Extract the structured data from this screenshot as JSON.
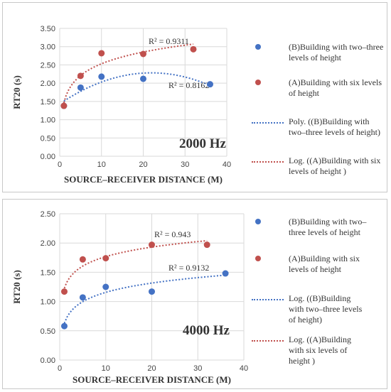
{
  "chart_data": [
    {
      "type": "scatter",
      "frequency_label": "2000 Hz",
      "xlabel": "SOURCE–RECEIVER DISTANCE (M)",
      "ylabel": "RT20 (s)",
      "xlim": [
        0,
        40
      ],
      "ylim": [
        0,
        3.5
      ],
      "x_ticks": [
        "0",
        "10",
        "20",
        "30",
        "40"
      ],
      "y_ticks": [
        "0.00",
        "0.50",
        "1.00",
        "1.50",
        "2.00",
        "2.50",
        "3.00",
        "3.50"
      ],
      "grid": true,
      "legend_position": "right",
      "series": [
        {
          "name": "(B)Building with two–three levels of height",
          "color": "#4472c4",
          "x": [
            1,
            5,
            10,
            20,
            36
          ],
          "y": [
            1.38,
            1.88,
            2.18,
            2.12,
            1.97
          ]
        },
        {
          "name": "(A)Building with six levels of height",
          "color": "#c0504d",
          "x": [
            1,
            5,
            10,
            20,
            32
          ],
          "y": [
            1.38,
            2.2,
            2.82,
            2.8,
            2.93
          ]
        }
      ],
      "trendlines": [
        {
          "name": "Poly. ((B)Building with two–three levels of height)",
          "kind": "poly",
          "color": "#4472c4",
          "r2_label": "R² = 0.8162",
          "x_range": [
            1,
            36
          ]
        },
        {
          "name": "Log. ((A)Building with six levels of height )",
          "kind": "log",
          "color": "#c0504d",
          "r2_label": "R² = 0.9311",
          "x_range": [
            1,
            32
          ]
        }
      ]
    },
    {
      "type": "scatter",
      "frequency_label": "4000 Hz",
      "xlabel": "SOURCE–RECEIVER DISTANCE (M)",
      "ylabel": "RT20 (s)",
      "xlim": [
        0,
        40
      ],
      "ylim": [
        0,
        2.5
      ],
      "x_ticks": [
        "0",
        "10",
        "20",
        "30",
        "40"
      ],
      "y_ticks": [
        "0.00",
        "0.50",
        "1.00",
        "1.50",
        "2.00",
        "2.50"
      ],
      "grid": true,
      "legend_position": "right",
      "series": [
        {
          "name": "(B)Building with two–three levels of height",
          "color": "#4472c4",
          "x": [
            1,
            5,
            10,
            20,
            36
          ],
          "y": [
            0.58,
            1.07,
            1.25,
            1.17,
            1.48
          ]
        },
        {
          "name": "(A)Building with six levels of height",
          "color": "#c0504d",
          "x": [
            1,
            5,
            10,
            20,
            32
          ],
          "y": [
            1.17,
            1.72,
            1.74,
            1.97,
            1.97
          ]
        }
      ],
      "trendlines": [
        {
          "name": "Log. ((B)Building with two–three levels of height)",
          "kind": "log",
          "color": "#4472c4",
          "r2_label": "R² = 0.9132",
          "x_range": [
            1,
            36
          ]
        },
        {
          "name": "Log. ((A)Building with six levels of height )",
          "kind": "log",
          "color": "#c0504d",
          "r2_label": "R² = 0.943",
          "x_range": [
            1,
            32
          ]
        }
      ]
    }
  ],
  "legends": [
    {
      "items": [
        {
          "type": "dot",
          "color": "#4472c4",
          "lines": [
            "(B)Building with two–three",
            "levels of height"
          ]
        },
        {
          "type": "dot",
          "color": "#c0504d",
          "lines": [
            "(A)Building with six levels",
            "of height"
          ]
        },
        {
          "type": "line",
          "color": "#4472c4",
          "lines": [
            "Poly. ((B)Building with",
            "two–three levels of height)"
          ]
        },
        {
          "type": "line",
          "color": "#c0504d",
          "lines": [
            "Log. ((A)Building with six",
            "levels of height )"
          ]
        }
      ]
    },
    {
      "items": [
        {
          "type": "dot",
          "color": "#4472c4",
          "lines": [
            "(B)Building with two–",
            "three levels of height"
          ]
        },
        {
          "type": "dot",
          "color": "#c0504d",
          "lines": [
            "(A)Building with six",
            "levels of height"
          ]
        },
        {
          "type": "line",
          "color": "#4472c4",
          "lines": [
            "Log. ((B)Building",
            "with two–three levels",
            "of height)"
          ]
        },
        {
          "type": "line",
          "color": "#c0504d",
          "lines": [
            "Log. ((A)Building",
            "with six levels of",
            "height )"
          ]
        }
      ]
    }
  ]
}
